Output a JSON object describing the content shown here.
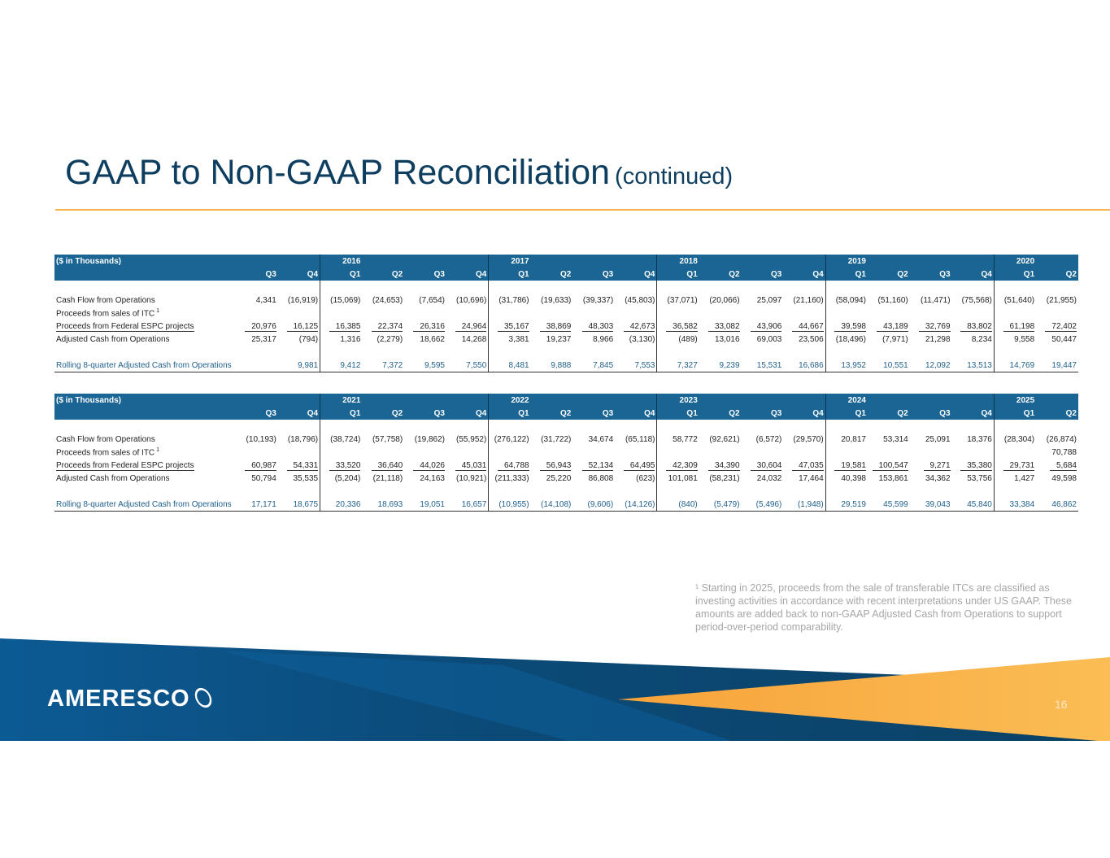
{
  "title": {
    "main": "GAAP to Non-GAAP Reconciliation",
    "sub": "(continued)"
  },
  "tables": [
    {
      "unit_label": "($ in Thousands)",
      "years": [
        "",
        "",
        "2016",
        "",
        "",
        "",
        "2017",
        "",
        "",
        "",
        "2018",
        "",
        "",
        "",
        "2019",
        "",
        "",
        "",
        "2020",
        ""
      ],
      "quarters": [
        "Q3",
        "Q4",
        "Q1",
        "Q2",
        "Q3",
        "Q4",
        "Q1",
        "Q2",
        "Q3",
        "Q4",
        "Q1",
        "Q2",
        "Q3",
        "Q4",
        "Q1",
        "Q2",
        "Q3",
        "Q4",
        "Q1",
        "Q2"
      ],
      "rows": [
        {
          "label": "Cash Flow from Operations",
          "values": [
            "4,341",
            "(16,919)",
            "(15,069)",
            "(24,653)",
            "(7,654)",
            "(10,696)",
            "(31,786)",
            "(19,633)",
            "(39,337)",
            "(45,803)",
            "(37,071)",
            "(20,066)",
            "25,097",
            "(21,160)",
            "(58,094)",
            "(51,160)",
            "(11,471)",
            "(75,568)",
            "(51,640)",
            "(21,955)"
          ]
        },
        {
          "label": "Proceeds from sales of ITC",
          "sup": "1",
          "values": [
            "",
            "",
            "",
            "",
            "",
            "",
            "",
            "",
            "",
            "",
            "",
            "",
            "",
            "",
            "",
            "",
            "",
            "",
            "",
            ""
          ]
        },
        {
          "label": "Proceeds from Federal ESPC projects",
          "underline": true,
          "values": [
            "20,976",
            "16,125",
            "16,385",
            "22,374",
            "26,316",
            "24,964",
            "35,167",
            "38,869",
            "48,303",
            "42,673",
            "36,582",
            "33,082",
            "43,906",
            "44,667",
            "39,598",
            "43,189",
            "32,769",
            "83,802",
            "61,198",
            "72,402"
          ]
        },
        {
          "label": "Adjusted Cash from Operations",
          "values": [
            "25,317",
            "(794)",
            "1,316",
            "(2,279)",
            "18,662",
            "14,268",
            "3,381",
            "19,237",
            "8,966",
            "(3,130)",
            "(489)",
            "13,016",
            "69,003",
            "23,506",
            "(18,496)",
            "(7,971)",
            "21,298",
            "8,234",
            "9,558",
            "50,447"
          ]
        },
        {
          "label": "Rolling 8-quarter Adjusted Cash from Operations",
          "blue": true,
          "values": [
            "",
            "9,981",
            "9,412",
            "7,372",
            "9,595",
            "7,550",
            "8,481",
            "9,888",
            "7,845",
            "7,553",
            "7,327",
            "9,239",
            "15,531",
            "16,686",
            "13,952",
            "10,551",
            "12,092",
            "13,513",
            "14,769",
            "19,447"
          ]
        }
      ]
    },
    {
      "unit_label": "($ in Thousands)",
      "years": [
        "",
        "",
        "2021",
        "",
        "",
        "",
        "2022",
        "",
        "",
        "",
        "2023",
        "",
        "",
        "",
        "2024",
        "",
        "",
        "",
        "2025",
        ""
      ],
      "quarters": [
        "Q3",
        "Q4",
        "Q1",
        "Q2",
        "Q3",
        "Q4",
        "Q1",
        "Q2",
        "Q3",
        "Q4",
        "Q1",
        "Q2",
        "Q3",
        "Q4",
        "Q1",
        "Q2",
        "Q3",
        "Q4",
        "Q1",
        "Q2"
      ],
      "rows": [
        {
          "label": "Cash Flow from Operations",
          "values": [
            "(10,193)",
            "(18,796)",
            "(38,724)",
            "(57,758)",
            "(19,862)",
            "(55,952)",
            "(276,122)",
            "(31,722)",
            "34,674",
            "(65,118)",
            "58,772",
            "(92,621)",
            "(6,572)",
            "(29,570)",
            "20,817",
            "53,314",
            "25,091",
            "18,376",
            "(28,304)",
            "(26,874)"
          ]
        },
        {
          "label": "Proceeds from sales of ITC",
          "sup": "1",
          "values": [
            "",
            "",
            "",
            "",
            "",
            "",
            "",
            "",
            "",
            "",
            "",
            "",
            "",
            "",
            "",
            "",
            "",
            "",
            "",
            "70,788"
          ]
        },
        {
          "label": "Proceeds from Federal ESPC projects",
          "underline": true,
          "values": [
            "60,987",
            "54,331",
            "33,520",
            "36,640",
            "44,026",
            "45,031",
            "64,788",
            "56,943",
            "52,134",
            "64,495",
            "42,309",
            "34,390",
            "30,604",
            "47,035",
            "19,581",
            "100,547",
            "9,271",
            "35,380",
            "29,731",
            "5,684"
          ]
        },
        {
          "label": "Adjusted Cash from Operations",
          "values": [
            "50,794",
            "35,535",
            "(5,204)",
            "(21,118)",
            "24,163",
            "(10,921)",
            "(211,333)",
            "25,220",
            "86,808",
            "(623)",
            "101,081",
            "(58,231)",
            "24,032",
            "17,464",
            "40,398",
            "153,861",
            "34,362",
            "53,756",
            "1,427",
            "49,598"
          ]
        },
        {
          "label": "Rolling 8-quarter Adjusted Cash from Operations",
          "blue": true,
          "values": [
            "17,171",
            "18,675",
            "20,336",
            "18,693",
            "19,051",
            "16,657",
            "(10,955)",
            "(14,108)",
            "(9,606)",
            "(14,126)",
            "(840)",
            "(5,479)",
            "(5,496)",
            "(1,948)",
            "29,519",
            "45,599",
            "39,043",
            "45,840",
            "33,384",
            "46,862"
          ]
        }
      ]
    }
  ],
  "footnote": "¹ Starting in 2025, proceeds from the sale of transferable ITCs are classified as investing activities in accordance with recent interpretations under US GAAP. These amounts are added back to non-GAAP Adjusted Cash from Operations to support period-over-period comparability.",
  "logo_text": "AMERESCO",
  "page_number": "16",
  "colors": {
    "title": "#0e3e5f",
    "header_bg": "#1a6594",
    "accent": "#f5b34d",
    "rolling_text": "#1f5f8b"
  }
}
